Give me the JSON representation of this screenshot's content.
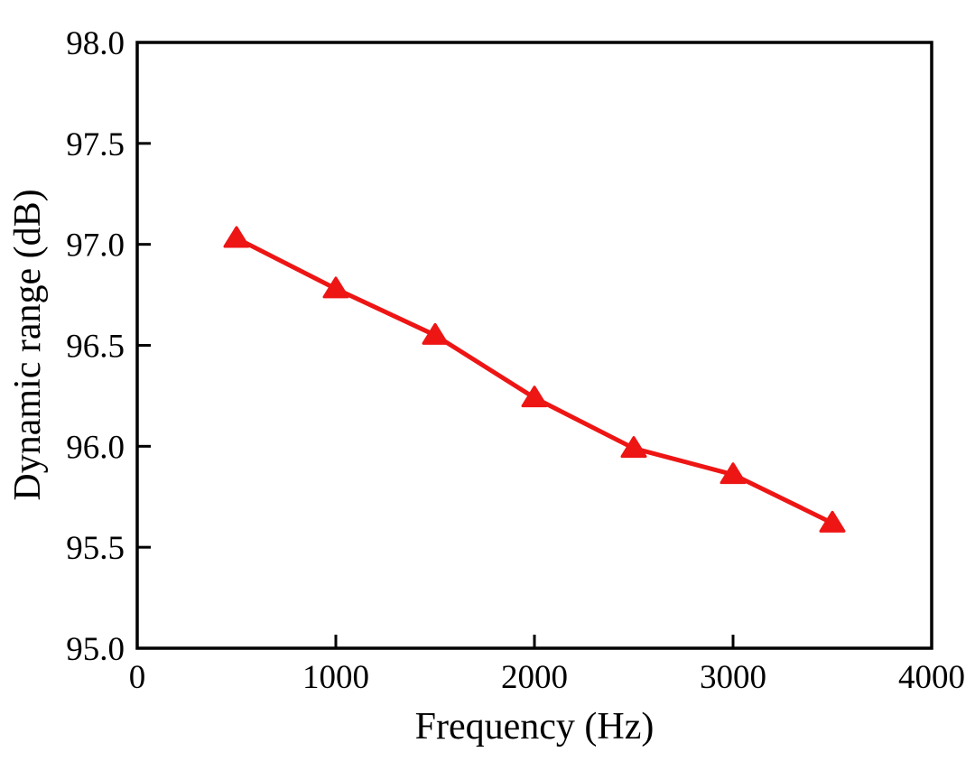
{
  "chart_data": {
    "type": "line",
    "title": "",
    "xlabel": "Frequency (Hz)",
    "ylabel": "Dynamic range (dB)",
    "x": [
      500,
      1000,
      1500,
      2000,
      2500,
      3000,
      3500
    ],
    "series": [
      {
        "name": "Dynamic range",
        "values": [
          97.03,
          96.78,
          96.55,
          96.24,
          95.99,
          95.86,
          95.62
        ]
      }
    ],
    "xlim": [
      0,
      4000
    ],
    "ylim": [
      95.0,
      98.0
    ],
    "xticks": {
      "values": [
        0,
        1000,
        2000,
        3000,
        4000
      ],
      "labels": [
        "0",
        "1000",
        "2000",
        "3000",
        "4000"
      ]
    },
    "yticks": {
      "values": [
        95.0,
        95.5,
        96.0,
        96.5,
        97.0,
        97.5,
        98.0
      ],
      "labels": [
        "95.0",
        "95.5",
        "96.0",
        "96.5",
        "97.0",
        "97.5",
        "98.0"
      ]
    },
    "grid": false,
    "legend": "none",
    "line_color": "#ee1515",
    "marker": "triangle-up",
    "axis_color": "#000000",
    "background": "#ffffff"
  }
}
